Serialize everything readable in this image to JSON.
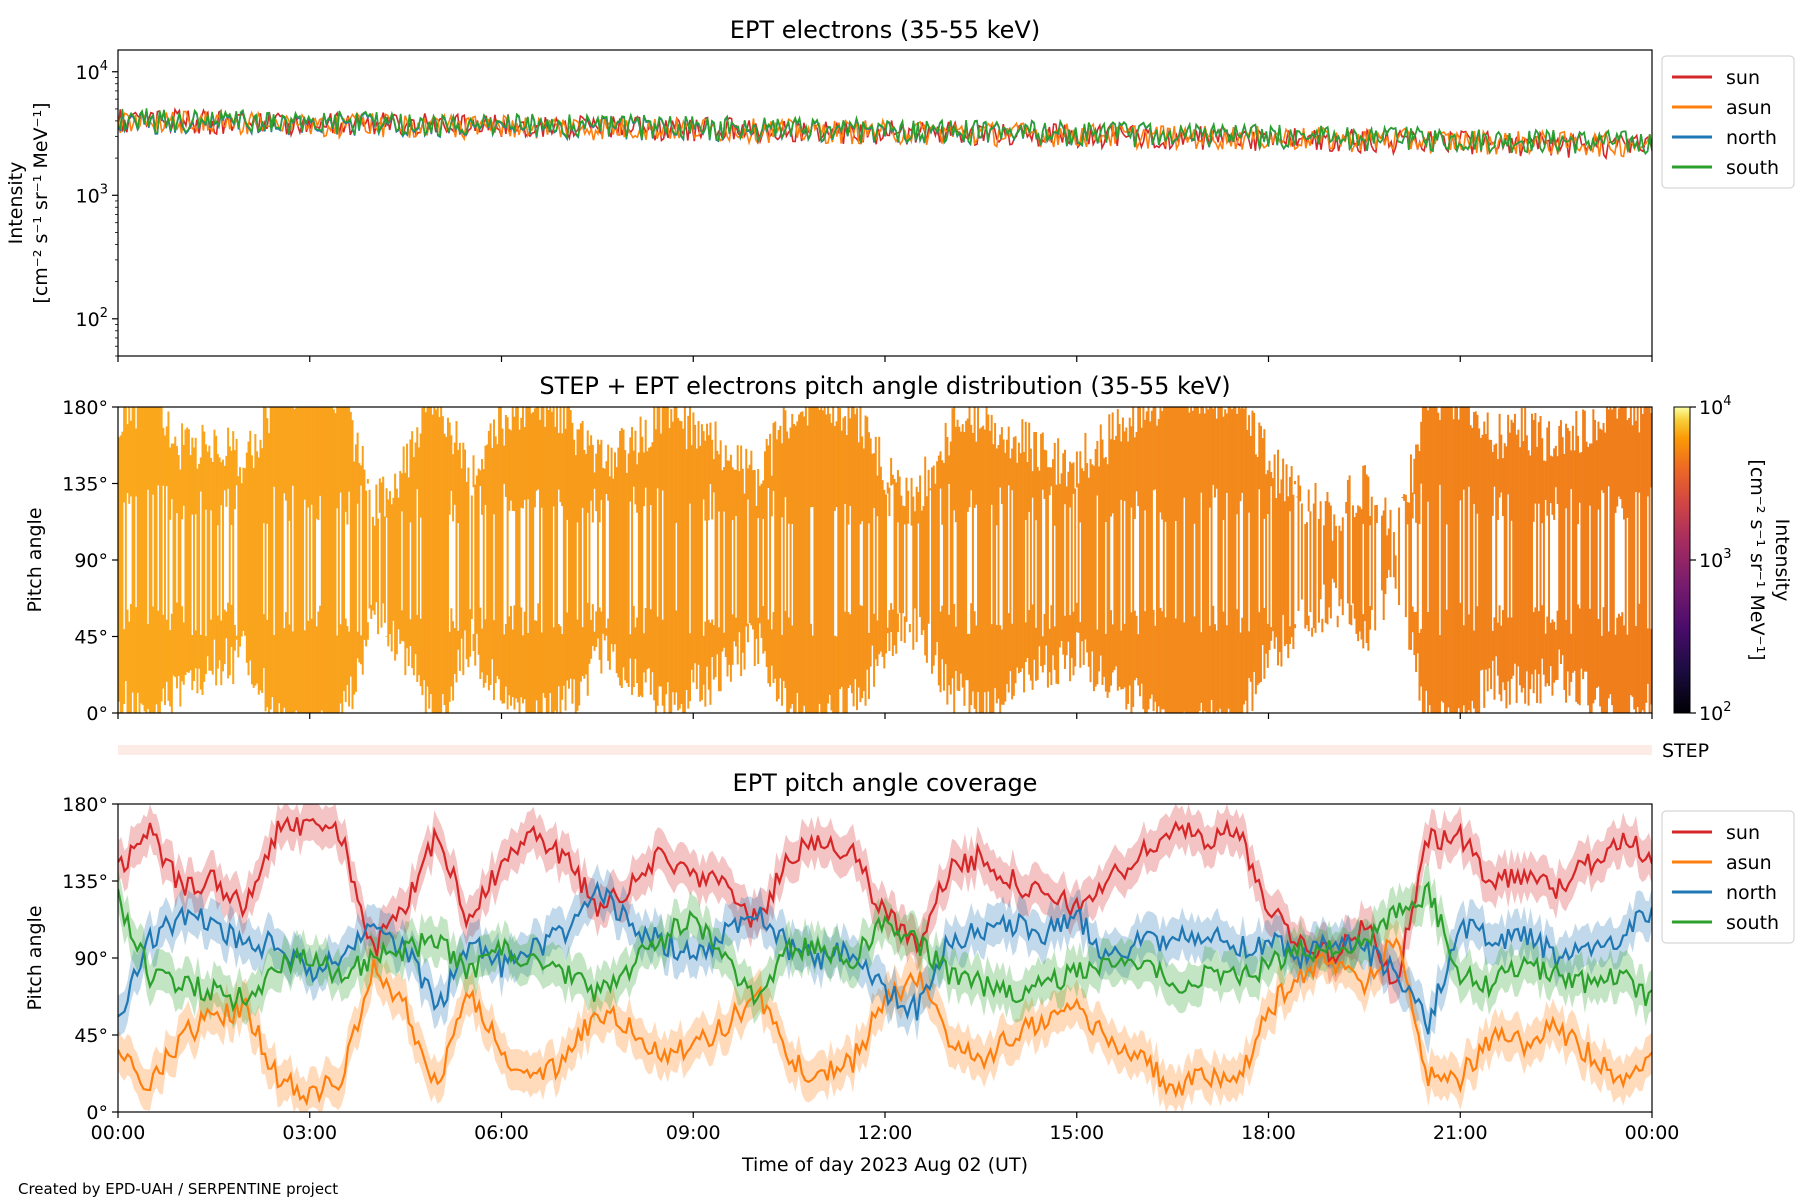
{
  "credit": "Created by EPD-UAH / SERPENTINE project",
  "chart_data": [
    {
      "type": "line",
      "title": "EPT electrons (35-55 keV)",
      "ylabel_line1": "Intensity",
      "ylabel_line2": "[cm⁻² s⁻¹ sr⁻¹ MeV⁻¹]",
      "yscale": "log",
      "ylim": [
        50,
        15000
      ],
      "yticks": [
        {
          "value": 100,
          "base": "10",
          "exp": "2"
        },
        {
          "value": 1000,
          "base": "10",
          "exp": "3"
        },
        {
          "value": 10000,
          "base": "10",
          "exp": "4"
        }
      ],
      "xlim_hours": [
        0,
        24
      ],
      "legend_position": "outside-right-top",
      "series": [
        {
          "name": "sun",
          "color": "#d62728",
          "start": 4100,
          "end": 2500
        },
        {
          "name": "asun",
          "color": "#ff7f0e",
          "start": 4000,
          "end": 2600
        },
        {
          "name": "north",
          "color": "#1f77b4",
          "start": 4050,
          "end": 2700
        },
        {
          "name": "south",
          "color": "#2ca02c",
          "start": 4150,
          "end": 2700
        }
      ]
    },
    {
      "type": "heatmap",
      "title": "STEP + EPT electrons pitch angle distribution (35-55 keV)",
      "ylabel": "Pitch angle",
      "ylim": [
        0,
        180
      ],
      "yticks": [
        "0°",
        "45°",
        "90°",
        "135°",
        "180°"
      ],
      "xlim_hours": [
        0,
        24
      ],
      "colorbar": {
        "label_line1": "Intensity",
        "label_line2": "[cm⁻² s⁻¹ sr⁻¹ MeV⁻¹]",
        "scale": "log",
        "range": [
          100,
          10000
        ],
        "ticks": [
          {
            "value": 100,
            "base": "10",
            "exp": "2"
          },
          {
            "value": 1000,
            "base": "10",
            "exp": "3"
          },
          {
            "value": 10000,
            "base": "10",
            "exp": "4"
          }
        ],
        "colormap": "inferno",
        "fill_start_color": "#fba81c",
        "fill_end_color": "#f07d1a"
      }
    },
    {
      "type": "heatmap",
      "label": "STEP",
      "note": "empty strip"
    },
    {
      "type": "line",
      "title": "EPT pitch angle coverage",
      "ylabel": "Pitch angle",
      "xlabel": "Time of day 2023 Aug 02 (UT)",
      "ylim": [
        0,
        180
      ],
      "yticks": [
        "0°",
        "45°",
        "90°",
        "135°",
        "180°"
      ],
      "xlim_hours": [
        0,
        24
      ],
      "xticks": [
        "00:00",
        "03:00",
        "06:00",
        "09:00",
        "12:00",
        "15:00",
        "18:00",
        "21:00",
        "00:00"
      ],
      "legend_position": "outside-right-top",
      "band": "shaded ± range around each line",
      "series": [
        {
          "name": "sun",
          "color": "#d62728",
          "hours": [
            0,
            0.5,
            1,
            1.5,
            2,
            2.5,
            3,
            3.5,
            4,
            4.5,
            5,
            5.5,
            6,
            6.5,
            7,
            7.5,
            8,
            8.5,
            9,
            9.5,
            10,
            10.5,
            11,
            11.5,
            12,
            12.5,
            13,
            13.5,
            14,
            14.5,
            15,
            15.5,
            16,
            16.5,
            17,
            17.5,
            18,
            18.5,
            19,
            19.5,
            20,
            20.5,
            21,
            21.5,
            22,
            22.5,
            23,
            23.5,
            24
          ],
          "values": [
            140,
            165,
            130,
            135,
            120,
            165,
            170,
            160,
            95,
            120,
            165,
            110,
            145,
            160,
            150,
            120,
            130,
            150,
            140,
            130,
            110,
            150,
            160,
            150,
            115,
            100,
            140,
            150,
            135,
            125,
            120,
            135,
            150,
            165,
            160,
            165,
            120,
            100,
            90,
            110,
            75,
            160,
            160,
            135,
            140,
            130,
            145,
            160,
            150
          ]
        },
        {
          "name": "asun",
          "color": "#ff7f0e",
          "hours": [
            0,
            0.5,
            1,
            1.5,
            2,
            2.5,
            3,
            3.5,
            4,
            4.5,
            5,
            5.5,
            6,
            6.5,
            7,
            7.5,
            8,
            8.5,
            9,
            9.5,
            10,
            10.5,
            11,
            11.5,
            12,
            12.5,
            13,
            13.5,
            14,
            14.5,
            15,
            15.5,
            16,
            16.5,
            17,
            17.5,
            18,
            18.5,
            19,
            19.5,
            20,
            20.5,
            21,
            21.5,
            22,
            22.5,
            23,
            23.5,
            24
          ],
          "values": [
            40,
            15,
            45,
            55,
            60,
            20,
            10,
            20,
            85,
            60,
            15,
            70,
            35,
            20,
            30,
            60,
            50,
            30,
            40,
            50,
            70,
            30,
            20,
            30,
            65,
            80,
            40,
            30,
            45,
            55,
            60,
            45,
            30,
            15,
            20,
            15,
            60,
            80,
            90,
            70,
            105,
            20,
            20,
            45,
            40,
            50,
            35,
            20,
            30
          ]
        },
        {
          "name": "north",
          "color": "#1f77b4",
          "hours": [
            0,
            0.5,
            1,
            1.5,
            2,
            2.5,
            3,
            3.5,
            4,
            4.5,
            5,
            5.5,
            6,
            6.5,
            7,
            7.5,
            8,
            8.5,
            9,
            9.5,
            10,
            10.5,
            11,
            11.5,
            12,
            12.5,
            13,
            13.5,
            14,
            14.5,
            15,
            15.5,
            16,
            16.5,
            17,
            17.5,
            18,
            18.5,
            19,
            19.5,
            20,
            20.5,
            21,
            21.5,
            22,
            22.5,
            23,
            23.5,
            24
          ],
          "values": [
            55,
            100,
            115,
            110,
            95,
            100,
            80,
            90,
            110,
            95,
            60,
            100,
            85,
            95,
            105,
            130,
            110,
            100,
            90,
            105,
            120,
            95,
            90,
            95,
            70,
            60,
            100,
            105,
            110,
            105,
            115,
            90,
            100,
            100,
            105,
            95,
            100,
            90,
            100,
            95,
            80,
            50,
            110,
            100,
            105,
            90,
            95,
            100,
            120
          ]
        },
        {
          "name": "south",
          "color": "#2ca02c",
          "hours": [
            0,
            0.5,
            1,
            1.5,
            2,
            2.5,
            3,
            3.5,
            4,
            4.5,
            5,
            5.5,
            6,
            6.5,
            7,
            7.5,
            8,
            8.5,
            9,
            9.5,
            10,
            10.5,
            11,
            11.5,
            12,
            12.5,
            13,
            13.5,
            14,
            14.5,
            15,
            15.5,
            16,
            16.5,
            17,
            17.5,
            18,
            18.5,
            19,
            19.5,
            20,
            20.5,
            21,
            21.5,
            22,
            22.5,
            23,
            23.5,
            24
          ],
          "values": [
            125,
            80,
            75,
            70,
            65,
            85,
            90,
            80,
            90,
            95,
            100,
            80,
            95,
            90,
            80,
            70,
            85,
            100,
            115,
            90,
            65,
            95,
            95,
            90,
            110,
            100,
            80,
            75,
            70,
            75,
            80,
            85,
            90,
            75,
            80,
            80,
            85,
            95,
            95,
            100,
            115,
            130,
            80,
            75,
            85,
            80,
            75,
            80,
            65
          ]
        }
      ]
    }
  ]
}
